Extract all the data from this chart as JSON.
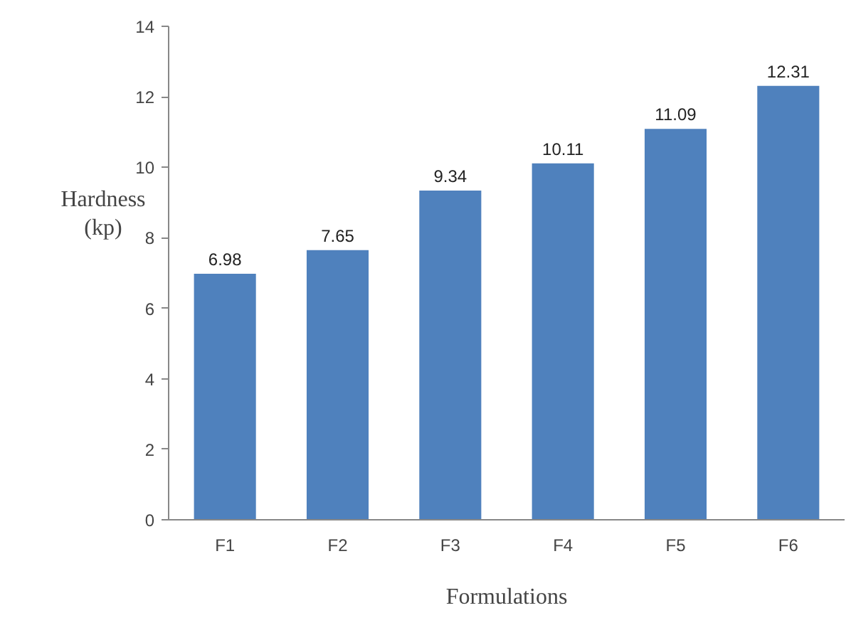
{
  "chart_data": {
    "type": "bar",
    "xlabel": "Formulations",
    "ylabel": "Hardness (kp)",
    "categories": [
      "F1",
      "F2",
      "F3",
      "F4",
      "F5",
      "F6"
    ],
    "values": [
      6.98,
      7.65,
      9.34,
      10.11,
      11.09,
      12.31
    ],
    "color": "#4f81bd",
    "ylim": [
      0,
      14
    ],
    "yticks": [
      0,
      2,
      4,
      6,
      8,
      10,
      12,
      14
    ],
    "grid": false,
    "data_labels": true
  }
}
